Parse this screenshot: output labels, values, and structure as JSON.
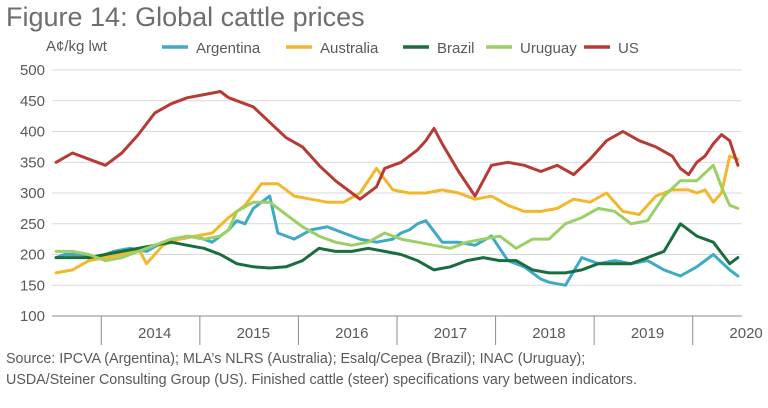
{
  "figure": {
    "title": "Figure 14: Global cattle prices",
    "source_line1": "Source: IPCVA (Argentina); MLA’s NLRS (Australia); Esalq/Cepea (Brazil); INAC (Uruguay);",
    "source_line2": "USDA/Steiner Consulting Group (US). Finished cattle (steer) specifications vary between indicators."
  },
  "chart_data": {
    "type": "line",
    "title": "",
    "xlabel": "",
    "ylabel": "A¢/kg lwt",
    "ylim": [
      100,
      500
    ],
    "yticks": [
      100,
      150,
      200,
      250,
      300,
      350,
      400,
      450,
      500
    ],
    "xlim": [
      "2013-07",
      "2020-06"
    ],
    "xtick_labels": [
      "2014",
      "2015",
      "2016",
      "2017",
      "2018",
      "2019",
      "2020"
    ],
    "grid": "horizontal",
    "legend_position": "top",
    "series": [
      {
        "name": "Argentina",
        "color": "#3eaac6",
        "x": [
          "2013-07",
          "2013-08",
          "2013-10",
          "2013-12",
          "2014-02",
          "2014-04",
          "2014-06",
          "2014-08",
          "2014-10",
          "2014-12",
          "2015-02",
          "2015-04",
          "2015-05",
          "2015-06",
          "2015-07",
          "2015-08",
          "2015-09",
          "2015-10",
          "2015-12",
          "2016-02",
          "2016-04",
          "2016-06",
          "2016-08",
          "2016-10",
          "2016-12",
          "2017-01",
          "2017-02",
          "2017-03",
          "2017-04",
          "2017-06",
          "2017-08",
          "2017-10",
          "2017-12",
          "2018-02",
          "2018-04",
          "2018-06",
          "2018-07",
          "2018-09",
          "2018-11",
          "2019-01",
          "2019-03",
          "2019-05",
          "2019-07",
          "2019-09",
          "2019-11",
          "2020-01",
          "2020-03",
          "2020-05",
          "2020-06"
        ],
        "values": [
          195,
          200,
          200,
          195,
          205,
          210,
          205,
          220,
          225,
          230,
          220,
          240,
          255,
          250,
          275,
          285,
          295,
          235,
          225,
          240,
          245,
          235,
          225,
          220,
          225,
          235,
          240,
          250,
          255,
          220,
          220,
          215,
          230,
          190,
          180,
          160,
          155,
          150,
          195,
          185,
          190,
          185,
          190,
          175,
          165,
          180,
          200,
          175,
          165
        ]
      },
      {
        "name": "Australia",
        "color": "#f2b82d",
        "x": [
          "2013-07",
          "2013-09",
          "2013-11",
          "2014-01",
          "2014-03",
          "2014-05",
          "2014-06",
          "2014-08",
          "2014-10",
          "2014-12",
          "2015-02",
          "2015-04",
          "2015-05",
          "2015-06",
          "2015-08",
          "2015-10",
          "2015-12",
          "2016-02",
          "2016-04",
          "2016-06",
          "2016-08",
          "2016-10",
          "2016-12",
          "2017-02",
          "2017-04",
          "2017-06",
          "2017-08",
          "2017-10",
          "2017-12",
          "2018-02",
          "2018-04",
          "2018-06",
          "2018-08",
          "2018-10",
          "2018-12",
          "2019-02",
          "2019-04",
          "2019-06",
          "2019-08",
          "2019-10",
          "2019-12",
          "2020-01",
          "2020-02",
          "2020-03",
          "2020-04",
          "2020-05",
          "2020-06"
        ],
        "values": [
          170,
          175,
          190,
          195,
          200,
          210,
          185,
          215,
          225,
          230,
          235,
          260,
          270,
          280,
          315,
          315,
          295,
          290,
          285,
          285,
          300,
          340,
          305,
          300,
          300,
          305,
          300,
          290,
          295,
          280,
          270,
          270,
          275,
          290,
          285,
          300,
          270,
          265,
          295,
          305,
          305,
          300,
          305,
          285,
          300,
          360,
          355
        ]
      },
      {
        "name": "Brazil",
        "color": "#1a6d3f",
        "x": [
          "2013-07",
          "2013-09",
          "2013-11",
          "2014-01",
          "2014-03",
          "2014-05",
          "2014-07",
          "2014-09",
          "2014-11",
          "2015-01",
          "2015-03",
          "2015-05",
          "2015-07",
          "2015-09",
          "2015-11",
          "2016-01",
          "2016-03",
          "2016-05",
          "2016-07",
          "2016-09",
          "2016-11",
          "2017-01",
          "2017-03",
          "2017-05",
          "2017-07",
          "2017-09",
          "2017-11",
          "2018-01",
          "2018-03",
          "2018-05",
          "2018-07",
          "2018-09",
          "2018-11",
          "2019-01",
          "2019-03",
          "2019-05",
          "2019-07",
          "2019-09",
          "2019-11",
          "2020-01",
          "2020-03",
          "2020-05",
          "2020-06"
        ],
        "values": [
          195,
          195,
          195,
          200,
          205,
          210,
          215,
          220,
          215,
          210,
          200,
          185,
          180,
          178,
          180,
          190,
          210,
          205,
          205,
          210,
          205,
          200,
          190,
          175,
          180,
          190,
          195,
          190,
          190,
          175,
          170,
          170,
          175,
          185,
          185,
          185,
          195,
          205,
          250,
          230,
          220,
          185,
          195
        ]
      },
      {
        "name": "Uruguay",
        "color": "#9ccf65",
        "x": [
          "2013-07",
          "2013-09",
          "2013-11",
          "2014-01",
          "2014-03",
          "2014-05",
          "2014-07",
          "2014-09",
          "2014-11",
          "2015-01",
          "2015-03",
          "2015-04",
          "2015-05",
          "2015-07",
          "2015-09",
          "2015-11",
          "2016-01",
          "2016-03",
          "2016-05",
          "2016-07",
          "2016-09",
          "2016-11",
          "2017-01",
          "2017-03",
          "2017-05",
          "2017-07",
          "2017-09",
          "2017-11",
          "2018-01",
          "2018-03",
          "2018-05",
          "2018-07",
          "2018-09",
          "2018-11",
          "2019-01",
          "2019-03",
          "2019-05",
          "2019-07",
          "2019-09",
          "2019-11",
          "2020-01",
          "2020-03",
          "2020-04",
          "2020-05",
          "2020-06"
        ],
        "values": [
          205,
          205,
          200,
          190,
          195,
          205,
          215,
          225,
          230,
          225,
          230,
          240,
          270,
          285,
          285,
          265,
          245,
          230,
          220,
          215,
          220,
          235,
          225,
          220,
          215,
          210,
          220,
          225,
          230,
          210,
          225,
          225,
          250,
          260,
          275,
          270,
          250,
          255,
          295,
          320,
          320,
          345,
          310,
          280,
          275
        ]
      },
      {
        "name": "US",
        "color": "#b83a34",
        "x": [
          "2013-07",
          "2013-09",
          "2013-11",
          "2014-01",
          "2014-03",
          "2014-05",
          "2014-07",
          "2014-09",
          "2014-11",
          "2015-01",
          "2015-03",
          "2015-04",
          "2015-06",
          "2015-07",
          "2015-09",
          "2015-11",
          "2016-01",
          "2016-03",
          "2016-05",
          "2016-07",
          "2016-08",
          "2016-10",
          "2016-11",
          "2016-12",
          "2017-01",
          "2017-03",
          "2017-04",
          "2017-05",
          "2017-06",
          "2017-08",
          "2017-10",
          "2017-12",
          "2018-02",
          "2018-04",
          "2018-06",
          "2018-08",
          "2018-10",
          "2018-12",
          "2019-02",
          "2019-04",
          "2019-06",
          "2019-08",
          "2019-10",
          "2019-11",
          "2019-12",
          "2020-01",
          "2020-02",
          "2020-03",
          "2020-04",
          "2020-05",
          "2020-06"
        ],
        "values": [
          350,
          365,
          355,
          345,
          365,
          395,
          430,
          445,
          455,
          460,
          465,
          455,
          445,
          440,
          415,
          390,
          375,
          345,
          320,
          300,
          290,
          310,
          340,
          345,
          350,
          370,
          385,
          405,
          380,
          335,
          295,
          345,
          350,
          345,
          335,
          345,
          330,
          355,
          385,
          400,
          385,
          375,
          360,
          340,
          330,
          350,
          360,
          380,
          395,
          385,
          345
        ]
      }
    ]
  }
}
